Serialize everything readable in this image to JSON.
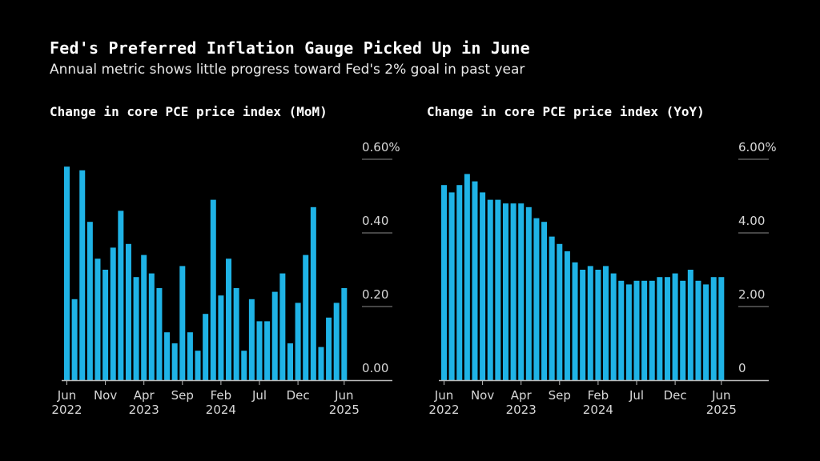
{
  "title": "Fed's Preferred Inflation Gauge Picked Up in June",
  "subtitle": "Annual metric shows little progress toward Fed's 2% goal in past year",
  "colors": {
    "bar": "#1fb3e6",
    "background": "#000000",
    "grid": "#8a8a8a",
    "axis": "#bbbbbb"
  },
  "chart_data": [
    {
      "type": "bar",
      "title": "Change in core PCE price index (MoM)",
      "categories": [
        "Jun 2022",
        "Jul 2022",
        "Aug 2022",
        "Sep 2022",
        "Oct 2022",
        "Nov 2022",
        "Dec 2022",
        "Jan 2023",
        "Feb 2023",
        "Mar 2023",
        "Apr 2023",
        "May 2023",
        "Jun 2023",
        "Jul 2023",
        "Aug 2023",
        "Sep 2023",
        "Oct 2023",
        "Nov 2023",
        "Dec 2023",
        "Jan 2024",
        "Feb 2024",
        "Mar 2024",
        "Apr 2024",
        "May 2024",
        "Jun 2024",
        "Jul 2024",
        "Aug 2024",
        "Sep 2024",
        "Oct 2024",
        "Nov 2024",
        "Dec 2024",
        "Jan 2025",
        "Feb 2025",
        "Mar 2025",
        "Apr 2025",
        "May 2025",
        "Jun 2025"
      ],
      "values": [
        0.58,
        0.22,
        0.57,
        0.43,
        0.33,
        0.3,
        0.36,
        0.46,
        0.37,
        0.28,
        0.34,
        0.29,
        0.25,
        0.13,
        0.1,
        0.31,
        0.13,
        0.08,
        0.18,
        0.49,
        0.23,
        0.33,
        0.25,
        0.08,
        0.22,
        0.16,
        0.16,
        0.24,
        0.29,
        0.1,
        0.21,
        0.34,
        0.47,
        0.09,
        0.17,
        0.21,
        0.25
      ],
      "ylim": [
        0,
        0.6
      ],
      "yticks": [
        0,
        0.2,
        0.4,
        0.6
      ],
      "ytick_labels": [
        "0.00",
        "0.20",
        "0.40",
        "0.60%"
      ],
      "xticks": [
        {
          "index": 0,
          "month": "Jun",
          "year": "2022"
        },
        {
          "index": 5,
          "month": "Nov",
          "year": ""
        },
        {
          "index": 10,
          "month": "Apr",
          "year": "2023"
        },
        {
          "index": 15,
          "month": "Sep",
          "year": ""
        },
        {
          "index": 20,
          "month": "Feb",
          "year": "2024"
        },
        {
          "index": 25,
          "month": "Jul",
          "year": ""
        },
        {
          "index": 30,
          "month": "Dec",
          "year": ""
        },
        {
          "index": 36,
          "month": "Jun",
          "year": "2025"
        }
      ],
      "grid": true,
      "y_axis_side": "right"
    },
    {
      "type": "bar",
      "title": "Change in core PCE price index (YoY)",
      "categories": [
        "Jun 2022",
        "Jul 2022",
        "Aug 2022",
        "Sep 2022",
        "Oct 2022",
        "Nov 2022",
        "Dec 2022",
        "Jan 2023",
        "Feb 2023",
        "Mar 2023",
        "Apr 2023",
        "May 2023",
        "Jun 2023",
        "Jul 2023",
        "Aug 2023",
        "Sep 2023",
        "Oct 2023",
        "Nov 2023",
        "Dec 2023",
        "Jan 2024",
        "Feb 2024",
        "Mar 2024",
        "Apr 2024",
        "May 2024",
        "Jun 2024",
        "Jul 2024",
        "Aug 2024",
        "Sep 2024",
        "Oct 2024",
        "Nov 2024",
        "Dec 2024",
        "Jan 2025",
        "Feb 2025",
        "Mar 2025",
        "Apr 2025",
        "May 2025",
        "Jun 2025"
      ],
      "values": [
        5.3,
        5.1,
        5.3,
        5.6,
        5.4,
        5.1,
        4.9,
        4.9,
        4.8,
        4.8,
        4.8,
        4.7,
        4.4,
        4.3,
        3.9,
        3.7,
        3.5,
        3.2,
        3.0,
        3.1,
        3.0,
        3.1,
        2.9,
        2.7,
        2.6,
        2.7,
        2.7,
        2.7,
        2.8,
        2.8,
        2.9,
        2.7,
        3.0,
        2.7,
        2.6,
        2.8,
        2.8
      ],
      "ylim": [
        0,
        6
      ],
      "yticks": [
        0,
        2,
        4,
        6
      ],
      "ytick_labels": [
        "0",
        "2.00",
        "4.00",
        "6.00%"
      ],
      "xticks": [
        {
          "index": 0,
          "month": "Jun",
          "year": "2022"
        },
        {
          "index": 5,
          "month": "Nov",
          "year": ""
        },
        {
          "index": 10,
          "month": "Apr",
          "year": "2023"
        },
        {
          "index": 15,
          "month": "Sep",
          "year": ""
        },
        {
          "index": 20,
          "month": "Feb",
          "year": "2024"
        },
        {
          "index": 25,
          "month": "Jul",
          "year": ""
        },
        {
          "index": 30,
          "month": "Dec",
          "year": ""
        },
        {
          "index": 36,
          "month": "Jun",
          "year": "2025"
        }
      ],
      "grid": true,
      "y_axis_side": "right"
    }
  ]
}
